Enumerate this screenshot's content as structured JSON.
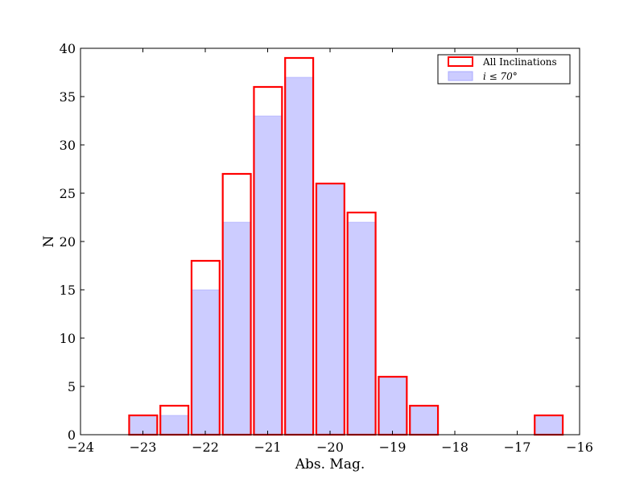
{
  "chart_data": {
    "type": "bar",
    "title": "",
    "xlabel": "Abs. Mag.",
    "ylabel": "N",
    "xlim": [
      -24,
      -16
    ],
    "ylim": [
      0,
      40
    ],
    "xticks": [
      -24,
      -23,
      -22,
      -21,
      -20,
      -19,
      -18,
      -17,
      -16
    ],
    "xtick_labels": [
      "−24",
      "−23",
      "−22",
      "−21",
      "−20",
      "−19",
      "−18",
      "−17",
      "−16"
    ],
    "yticks": [
      0,
      5,
      10,
      15,
      20,
      25,
      30,
      35,
      40
    ],
    "ytick_labels": [
      "0",
      "5",
      "10",
      "15",
      "20",
      "25",
      "30",
      "35",
      "40"
    ],
    "grid": false,
    "legend_position": "top-right",
    "bin_width": 0.45,
    "series": [
      {
        "name": "All Inclinations",
        "style": "outline",
        "color": "#ff0000",
        "bins": [
          {
            "x0": -23.22,
            "value": 2
          },
          {
            "x0": -22.72,
            "value": 3
          },
          {
            "x0": -22.22,
            "value": 18
          },
          {
            "x0": -21.72,
            "value": 27
          },
          {
            "x0": -21.22,
            "value": 36
          },
          {
            "x0": -20.72,
            "value": 39
          },
          {
            "x0": -20.22,
            "value": 26
          },
          {
            "x0": -19.72,
            "value": 23
          },
          {
            "x0": -19.22,
            "value": 6
          },
          {
            "x0": -18.72,
            "value": 3
          },
          {
            "x0": -16.72,
            "value": 2
          }
        ]
      },
      {
        "name": "i ≤ 70°",
        "style": "filled",
        "color": "#8080ff",
        "bins": [
          {
            "x0": -23.22,
            "value": 2
          },
          {
            "x0": -22.72,
            "value": 2
          },
          {
            "x0": -22.22,
            "value": 15
          },
          {
            "x0": -21.72,
            "value": 22
          },
          {
            "x0": -21.22,
            "value": 33
          },
          {
            "x0": -20.72,
            "value": 37
          },
          {
            "x0": -20.22,
            "value": 26
          },
          {
            "x0": -19.72,
            "value": 22
          },
          {
            "x0": -19.22,
            "value": 6
          },
          {
            "x0": -18.72,
            "value": 3
          },
          {
            "x0": -16.72,
            "value": 2
          }
        ]
      }
    ]
  }
}
